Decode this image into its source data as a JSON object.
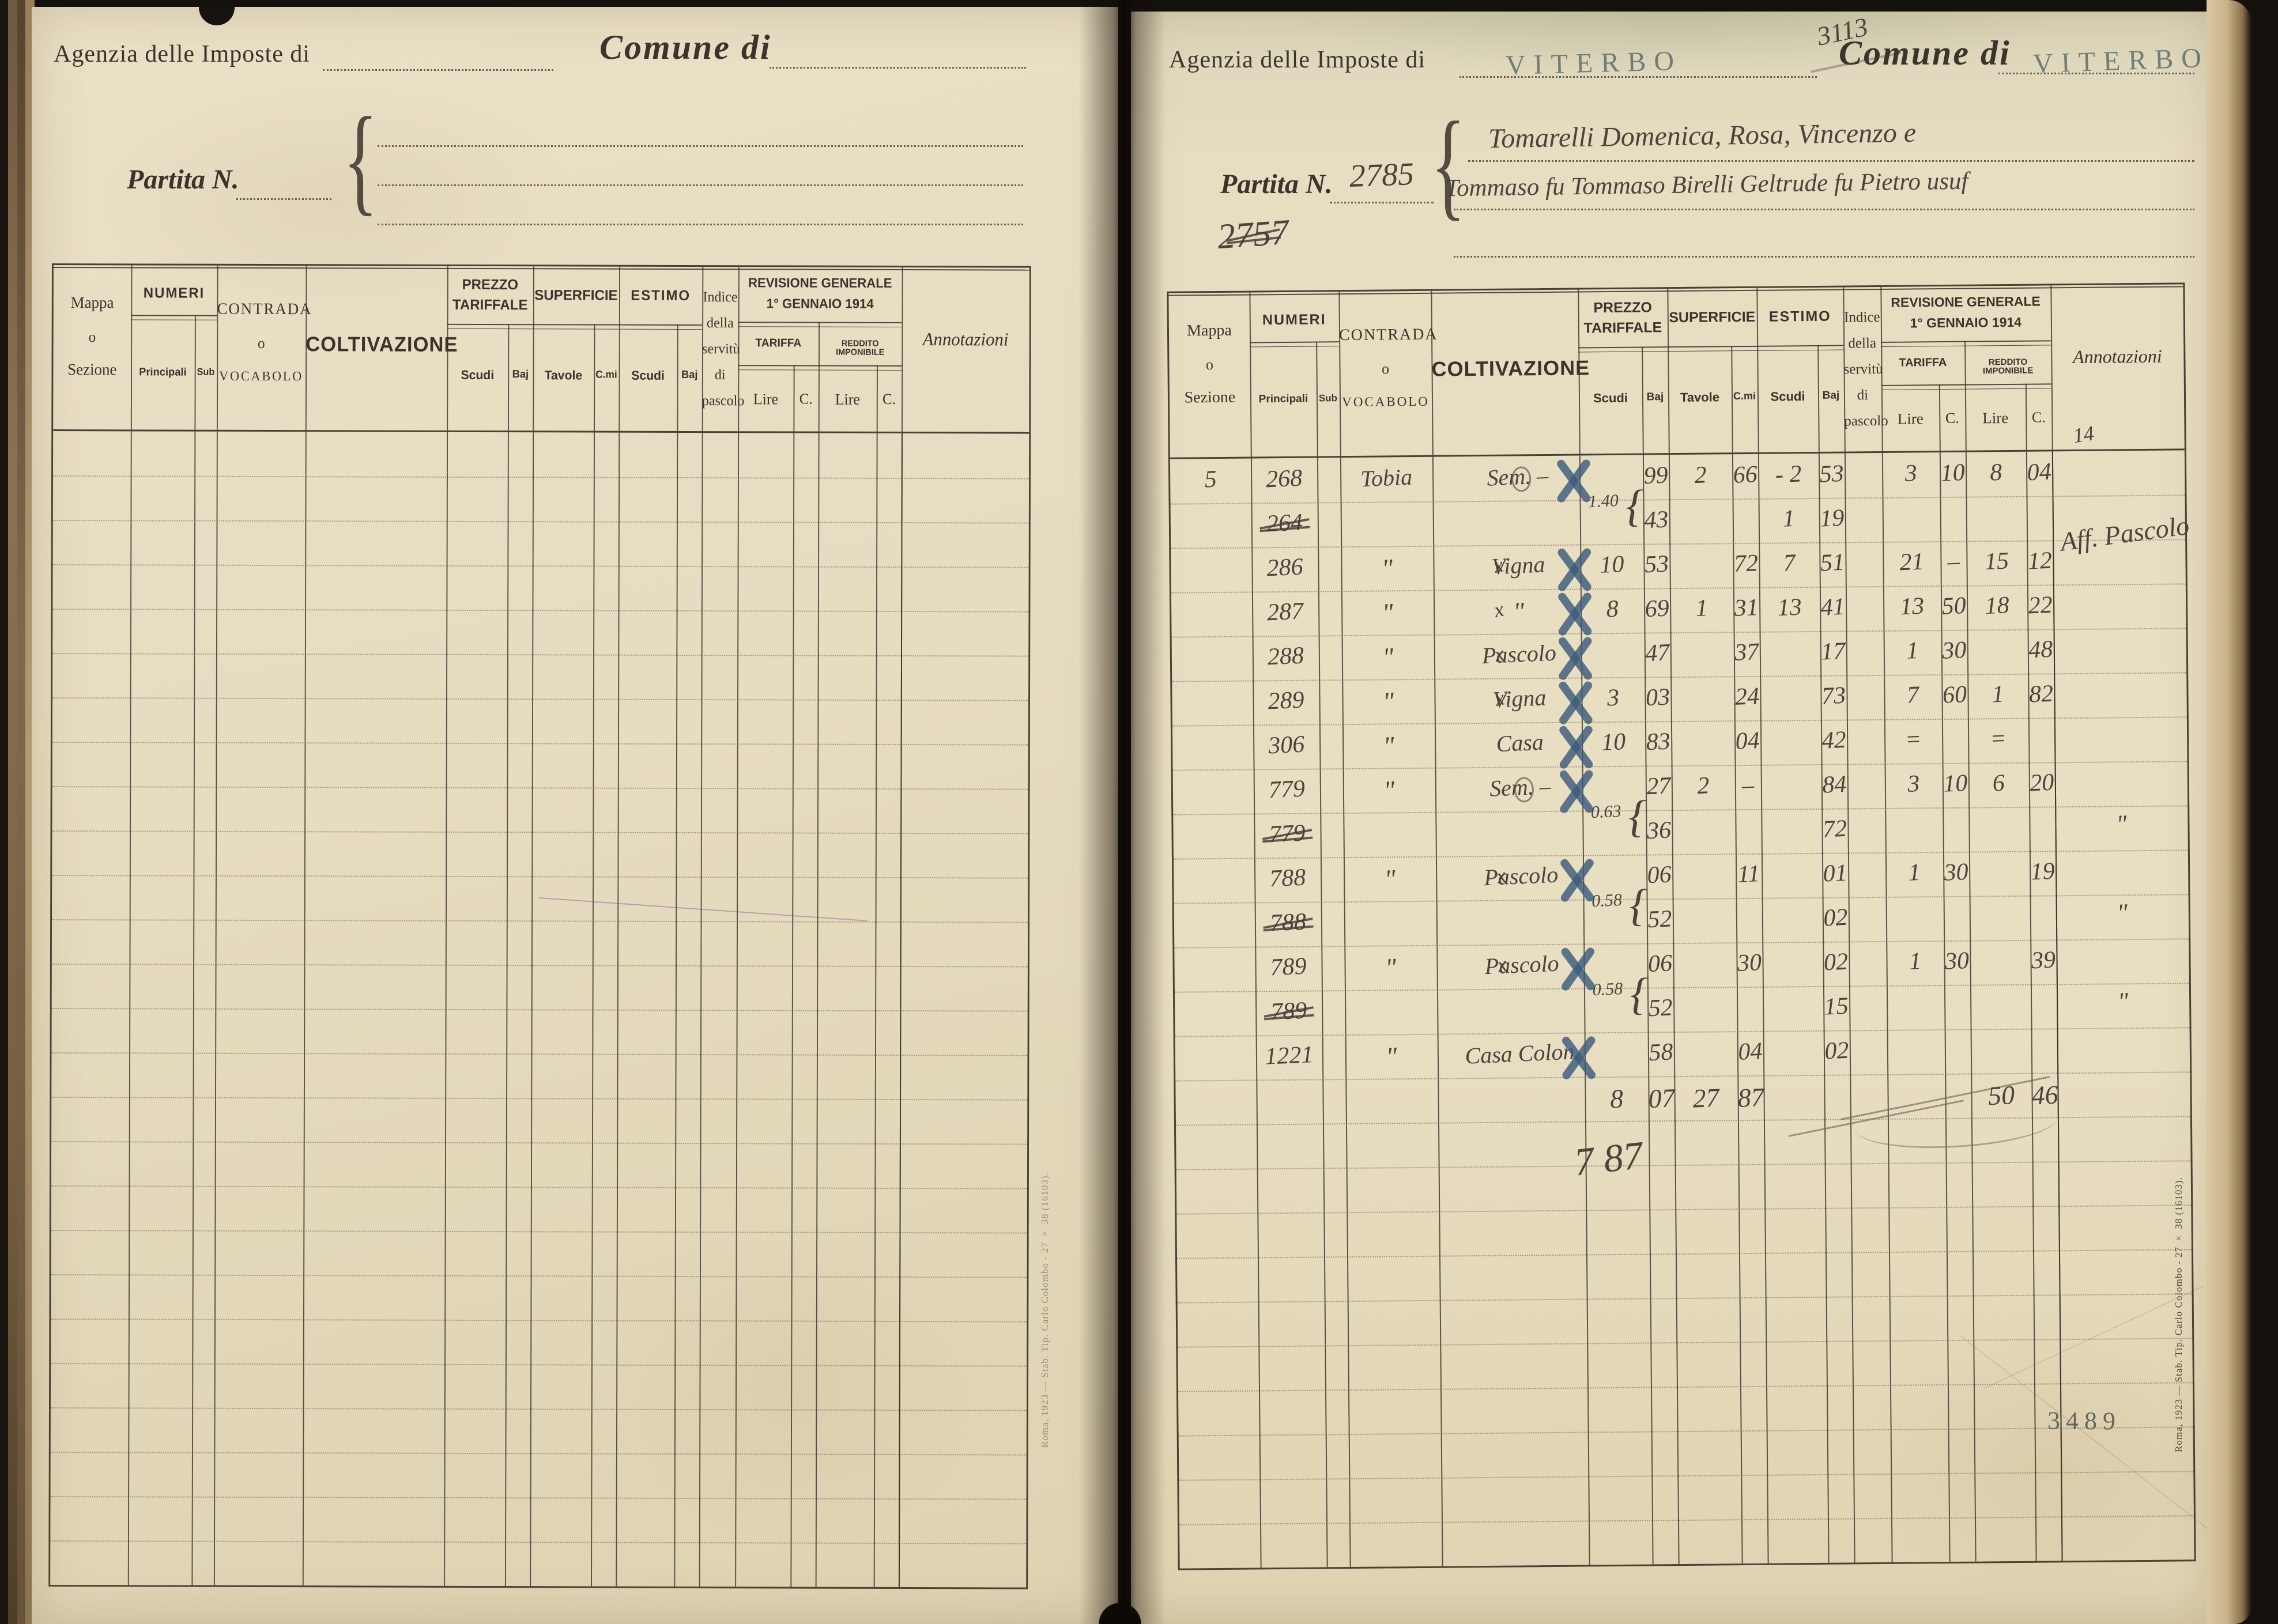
{
  "left_page": {
    "agency_label": "Agenzia delle Imposte di",
    "comune_label": "Comune di",
    "partita_label": "Partita N."
  },
  "right_page": {
    "agency_label": "Agenzia delle Imposte di",
    "agency_stamp": "VITERBO",
    "comune_label": "Comune di",
    "comune_stamp": "VITERBO",
    "partita_label": "Partita N.",
    "partita_number": "2785",
    "pencil_top_number": "3113",
    "pencil_crossed_number": "2757",
    "owner_line1": "Tomarelli Domenica, Rosa, Vincenzo e",
    "owner_line2": "Tommaso fu Tommaso Birelli Geltrude fu Pietro usuf",
    "pencil_margin_note": "14",
    "page_stamp_number": "3489",
    "totals": {
      "ps": "8",
      "pb": "07",
      "st": "27",
      "sc": "87",
      "rl": "50",
      "rc": "46",
      "pencil_total": "7 87"
    }
  },
  "print_note": "Roma, 1923 — Stab. Tip. Carlo Colombo - 27 × 38 (16103).",
  "table_headers": {
    "mappa": [
      "Mappa",
      "o",
      "Sezione"
    ],
    "numeri": "NUMERI",
    "principali": "Principali",
    "sub": "Sub",
    "contrada": [
      "CONTRADA",
      "o",
      "VOCABOLO"
    ],
    "coltivazione": "COLTIVAZIONE",
    "prezzo": [
      "PREZZO",
      "TARIFFALE"
    ],
    "scudi": "Scudi",
    "baj": "Baj",
    "superficie": "SUPERFICIE",
    "tavole": "Tavole",
    "cmi": "C.mi",
    "estimo": "ESTIMO",
    "indice": [
      "Indice",
      "della",
      "servitù",
      "di",
      "pascolo"
    ],
    "revisione": [
      "REVISIONE GENERALE",
      "1° GENNAIO 1914"
    ],
    "tariffa": "TARIFFA",
    "reddito": "REDDITO IMPONIBILE",
    "lire": "Lire",
    "c": "C.",
    "annotazioni": "Annotazioni"
  },
  "rows": [
    {
      "i": 0,
      "m": "5",
      "p": "268",
      "co": "Tobia",
      "cv": "Sem. –",
      "circ": true,
      "bx": true,
      "pb": "99",
      "st": "2",
      "sc": "66",
      "es": "- 2",
      "eb": "53",
      "tl": "3",
      "tc": "10",
      "rl": "8",
      "rc": "04"
    },
    {
      "i": 1,
      "p": "264",
      "struck": true,
      "note": "1.40",
      "pb": "43",
      "es": "1",
      "eb": "19",
      "an": "Aff. Pascolo",
      "an_big": true
    },
    {
      "i": 2,
      "p": "286",
      "co": "\"",
      "cv": "Vigna",
      "px": true,
      "bx": true,
      "ps": "10",
      "pb": "53",
      "sc": "72",
      "es": "7",
      "eb": "51",
      "tl": "21",
      "tc": "–",
      "rl": "15",
      "rc": "12"
    },
    {
      "i": 3,
      "p": "287",
      "co": "\"",
      "cv": "\"",
      "px": true,
      "bx": true,
      "ps": "8",
      "pb": "69",
      "st": "1",
      "sc": "31",
      "es": "13",
      "eb": "41",
      "tl": "13",
      "tc": "50",
      "rl": "18",
      "rc": "22"
    },
    {
      "i": 4,
      "p": "288",
      "co": "\"",
      "cv": "Pascolo",
      "px": true,
      "bx": true,
      "pb": "47",
      "sc": "37",
      "eb": "17",
      "tl": "1",
      "tc": "30",
      "rc": "48"
    },
    {
      "i": 5,
      "p": "289",
      "co": "\"",
      "cv": "Vigna",
      "px": true,
      "bx": true,
      "ps": "3",
      "pb": "03",
      "sc": "24",
      "eb": "73",
      "tl": "7",
      "tc": "60",
      "rl": "1",
      "rc": "82"
    },
    {
      "i": 6,
      "p": "306",
      "co": "\"",
      "cv": "Casa",
      "bx": true,
      "ps": "10",
      "pb": "83",
      "sc": "04",
      "eb": "42",
      "tl": "=",
      "rl": "="
    },
    {
      "i": 7,
      "p": "779",
      "co": "\"",
      "cv": "Sem. –",
      "circ": true,
      "bx": true,
      "pb": "27",
      "st": "2",
      "sc": "–",
      "eb": "84",
      "tl": "3",
      "tc": "10",
      "rl": "6",
      "rc": "20"
    },
    {
      "i": 8,
      "p": "779",
      "struck": true,
      "note": "0.63",
      "pb": "36",
      "eb": "72",
      "an": "\""
    },
    {
      "i": 9,
      "p": "788",
      "co": "\"",
      "cv": "Pascolo",
      "px": true,
      "bx": true,
      "pb": "06",
      "sc": "11",
      "eb": "01",
      "tl": "1",
      "tc": "30",
      "rc": "19"
    },
    {
      "i": 10,
      "p": "788",
      "struck": true,
      "note": "0.58",
      "pb": "52",
      "eb": "02",
      "an": "\""
    },
    {
      "i": 11,
      "p": "789",
      "co": "\"",
      "cv": "Pascolo",
      "px": true,
      "bx": true,
      "pb": "06",
      "sc": "30",
      "eb": "02",
      "tl": "1",
      "tc": "30",
      "rc": "39"
    },
    {
      "i": 12,
      "p": "789",
      "struck": true,
      "note": "0.58",
      "pb": "52",
      "eb": "15",
      "an": "\""
    },
    {
      "i": 13,
      "p": "1221",
      "co": "\"",
      "cv": "Casa Colon.",
      "bx": true,
      "pb": "58",
      "sc": "04",
      "eb": "02",
      "pencil_strike": true
    }
  ]
}
